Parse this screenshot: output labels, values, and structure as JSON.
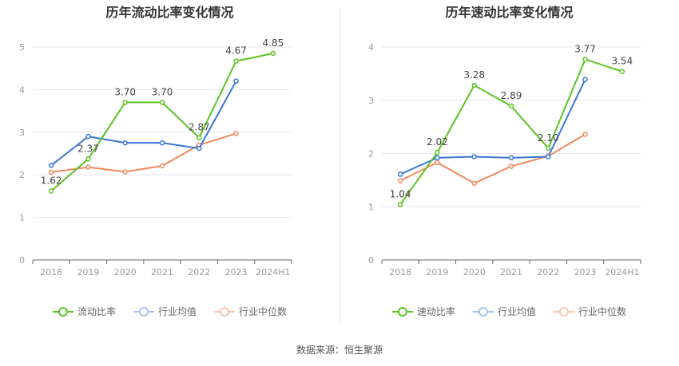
{
  "source": "数据来源：恒生聚源",
  "colors": {
    "series1": "#5dc425",
    "series2": "#3b76d6",
    "series3": "#f08a5d",
    "axis": "#999999",
    "grid": "#e6e6f0"
  },
  "legend": {
    "left_label": "流动比率",
    "right_label": "速动比率",
    "avg_label": "行业均值",
    "median_label": "行业中位数"
  },
  "chart_data": [
    {
      "type": "line",
      "title": "历年流动比率变化情况",
      "categories": [
        "2018",
        "2019",
        "2020",
        "2021",
        "2022",
        "2023",
        "2024H1"
      ],
      "ylim": [
        0,
        5
      ],
      "yticks": [
        "0",
        "1",
        "2",
        "3",
        "4",
        "5"
      ],
      "grid": true,
      "legend_position": "bottom",
      "series": [
        {
          "name": "流动比率",
          "values": [
            1.62,
            2.37,
            3.7,
            3.7,
            2.87,
            4.67,
            4.85
          ],
          "labels": [
            "1.62",
            "2.37",
            "3.70",
            "3.70",
            "2.87",
            "4.67",
            "4.85"
          ]
        },
        {
          "name": "行业均值",
          "values": [
            2.22,
            2.9,
            2.75,
            2.75,
            2.62,
            4.2,
            null
          ]
        },
        {
          "name": "行业中位数",
          "values": [
            2.06,
            2.18,
            2.07,
            2.21,
            2.7,
            2.97,
            null
          ]
        }
      ]
    },
    {
      "type": "line",
      "title": "历年速动比率变化情况",
      "categories": [
        "2018",
        "2019",
        "2020",
        "2021",
        "2022",
        "2023",
        "2024H1"
      ],
      "ylim": [
        0,
        4
      ],
      "yticks": [
        "0",
        "1",
        "2",
        "3",
        "4"
      ],
      "grid": true,
      "legend_position": "bottom",
      "series": [
        {
          "name": "速动比率",
          "values": [
            1.04,
            2.02,
            3.28,
            2.89,
            2.1,
            3.77,
            3.54
          ],
          "labels": [
            "1.04",
            "2.02",
            "3.28",
            "2.89",
            "2.10",
            "3.77",
            "3.54"
          ]
        },
        {
          "name": "行业均值",
          "values": [
            1.61,
            1.92,
            1.94,
            1.92,
            1.94,
            3.39,
            null
          ]
        },
        {
          "name": "行业中位数",
          "values": [
            1.49,
            1.83,
            1.44,
            1.76,
            1.95,
            2.36,
            null
          ]
        }
      ]
    }
  ]
}
